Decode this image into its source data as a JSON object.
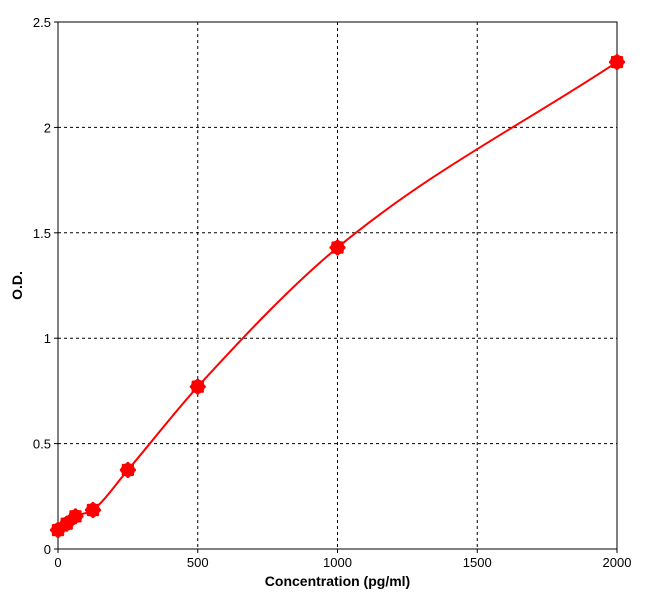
{
  "chart_data": {
    "type": "scatter",
    "title": "",
    "xlabel": "Concentration (pg/ml)",
    "ylabel": "O.D.",
    "xlim": [
      0,
      2000
    ],
    "ylim": [
      0,
      2.5
    ],
    "xticks": [
      0,
      500,
      1000,
      1500,
      2000
    ],
    "yticks": [
      0,
      0.5,
      1,
      1.5,
      2,
      2.5
    ],
    "xtick_labels": [
      "0",
      "500",
      "1000",
      "1500",
      "2000"
    ],
    "ytick_labels": [
      "0",
      "0.5",
      "1",
      "1.5",
      "2",
      "2.5"
    ],
    "grid": true,
    "legend": "none",
    "series": [
      {
        "x": [
          0,
          31.25,
          62.5,
          125,
          250,
          500,
          1000,
          2000
        ],
        "y": [
          0.09,
          0.12,
          0.155,
          0.185,
          0.375,
          0.77,
          1.43,
          2.31
        ],
        "marker": "filled-circle",
        "fit": "smooth-curve",
        "color": "#ff0000"
      }
    ]
  }
}
